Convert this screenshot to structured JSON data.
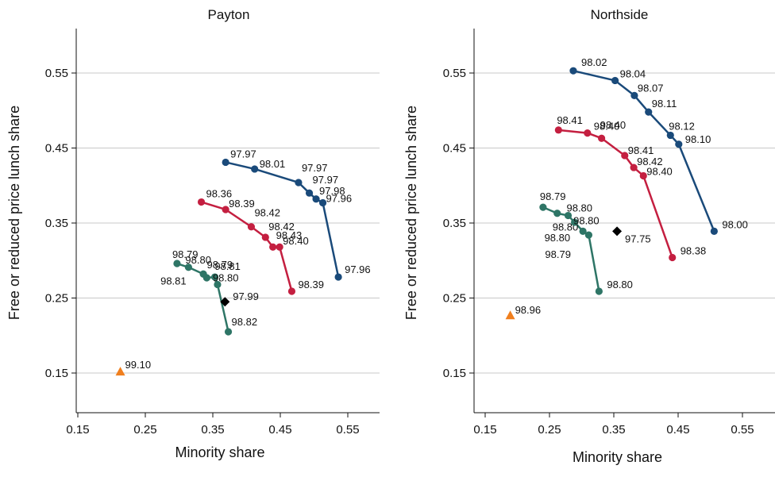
{
  "chart_data": [
    {
      "type": "scatter",
      "title": "Payton",
      "xlabel": "Minority share",
      "ylabel": "Free or reduced price lunch share",
      "xlim": [
        0.15,
        0.55
      ],
      "ylim": [
        0.15,
        0.55
      ],
      "x_ticks": [
        "0.15",
        "0.25",
        "0.35",
        "0.45",
        "0.55"
      ],
      "y_ticks": [
        "0.15",
        "0.25",
        "0.35",
        "0.45",
        "0.55"
      ],
      "grid": "horizontal",
      "series": [
        {
          "color": "#1a4a7a",
          "marker": "circle",
          "connected": true,
          "points": [
            {
              "x": 0.369,
              "y": 0.431,
              "label": "97.97"
            },
            {
              "x": 0.412,
              "y": 0.422,
              "label": "98.01"
            },
            {
              "x": 0.477,
              "y": 0.404,
              "label": "97.97"
            },
            {
              "x": 0.493,
              "y": 0.39,
              "label": "97.97"
            },
            {
              "x": 0.503,
              "y": 0.382,
              "label": "97.98"
            },
            {
              "x": 0.513,
              "y": 0.377,
              "label": "97.96"
            },
            {
              "x": 0.536,
              "y": 0.278,
              "label": "97.96"
            }
          ]
        },
        {
          "color": "#c41f40",
          "marker": "circle",
          "connected": true,
          "points": [
            {
              "x": 0.333,
              "y": 0.378,
              "label": "98.36"
            },
            {
              "x": 0.369,
              "y": 0.368,
              "label": "98.39"
            },
            {
              "x": 0.407,
              "y": 0.345,
              "label": "98.42"
            },
            {
              "x": 0.428,
              "y": 0.331,
              "label": "98.42"
            },
            {
              "x": 0.439,
              "y": 0.318,
              "label": "98.43"
            },
            {
              "x": 0.449,
              "y": 0.318,
              "label": "98.40"
            },
            {
              "x": 0.467,
              "y": 0.259,
              "label": "98.39"
            }
          ]
        },
        {
          "color": "#2e7566",
          "marker": "circle",
          "connected": true,
          "points": [
            {
              "x": 0.297,
              "y": 0.296,
              "label": "98.79"
            },
            {
              "x": 0.314,
              "y": 0.291,
              "label": "98.80"
            },
            {
              "x": 0.336,
              "y": 0.282,
              "label": "98.81"
            },
            {
              "x": 0.341,
              "y": 0.277,
              "label": "98.81"
            },
            {
              "x": 0.353,
              "y": 0.278,
              "label": "98.79"
            },
            {
              "x": 0.357,
              "y": 0.268,
              "label": "98.80"
            },
            {
              "x": 0.373,
              "y": 0.205,
              "label": "98.82"
            }
          ]
        },
        {
          "color": "#000000",
          "marker": "diamond",
          "connected": false,
          "points": [
            {
              "x": 0.368,
              "y": 0.245,
              "label": "97.99"
            }
          ]
        },
        {
          "color": "#f07f1e",
          "marker": "triangle",
          "connected": false,
          "points": [
            {
              "x": 0.213,
              "y": 0.152,
              "label": "99.10"
            }
          ]
        }
      ]
    },
    {
      "type": "scatter",
      "title": "Northside",
      "xlabel": "Minority share",
      "ylabel": "Free or reduced price lunch share",
      "xlim": [
        0.15,
        0.55
      ],
      "ylim": [
        0.15,
        0.55
      ],
      "x_ticks": [
        "0.15",
        "0.25",
        "0.35",
        "0.45",
        "0.55"
      ],
      "y_ticks": [
        "0.15",
        "0.25",
        "0.35",
        "0.45",
        "0.55"
      ],
      "grid": "horizontal",
      "series": [
        {
          "color": "#1a4a7a",
          "marker": "circle",
          "connected": true,
          "points": [
            {
              "x": 0.287,
              "y": 0.553,
              "label": "98.02"
            },
            {
              "x": 0.352,
              "y": 0.54,
              "label": "98.04"
            },
            {
              "x": 0.382,
              "y": 0.52,
              "label": "98.07"
            },
            {
              "x": 0.404,
              "y": 0.498,
              "label": "98.11"
            },
            {
              "x": 0.438,
              "y": 0.467,
              "label": "98.12"
            },
            {
              "x": 0.451,
              "y": 0.455,
              "label": "98.10"
            },
            {
              "x": 0.506,
              "y": 0.339,
              "label": "98.00"
            }
          ]
        },
        {
          "color": "#c41f40",
          "marker": "circle",
          "connected": true,
          "points": [
            {
              "x": 0.264,
              "y": 0.474,
              "label": "98.41"
            },
            {
              "x": 0.309,
              "y": 0.47,
              "label": "98.40"
            },
            {
              "x": 0.331,
              "y": 0.463,
              "label": "98.40"
            },
            {
              "x": 0.367,
              "y": 0.44,
              "label": "98.41"
            },
            {
              "x": 0.381,
              "y": 0.424,
              "label": "98.42"
            },
            {
              "x": 0.396,
              "y": 0.413,
              "label": "98.40"
            },
            {
              "x": 0.441,
              "y": 0.304,
              "label": "98.38"
            }
          ]
        },
        {
          "color": "#2e7566",
          "marker": "circle",
          "connected": true,
          "points": [
            {
              "x": 0.24,
              "y": 0.371,
              "label": "98.79"
            },
            {
              "x": 0.262,
              "y": 0.363,
              "label": "98.80"
            },
            {
              "x": 0.279,
              "y": 0.36,
              "label": "98.80"
            },
            {
              "x": 0.289,
              "y": 0.351,
              "label": "98.80"
            },
            {
              "x": 0.302,
              "y": 0.339,
              "label": "98.80"
            },
            {
              "x": 0.311,
              "y": 0.334,
              "label": "98.79"
            },
            {
              "x": 0.327,
              "y": 0.259,
              "label": "98.80"
            }
          ]
        },
        {
          "color": "#000000",
          "marker": "diamond",
          "connected": false,
          "points": [
            {
              "x": 0.355,
              "y": 0.339,
              "label": "97.75"
            }
          ]
        },
        {
          "color": "#f07f1e",
          "marker": "triangle",
          "connected": false,
          "points": [
            {
              "x": 0.189,
              "y": 0.227,
              "label": "98.96"
            }
          ]
        }
      ]
    }
  ]
}
